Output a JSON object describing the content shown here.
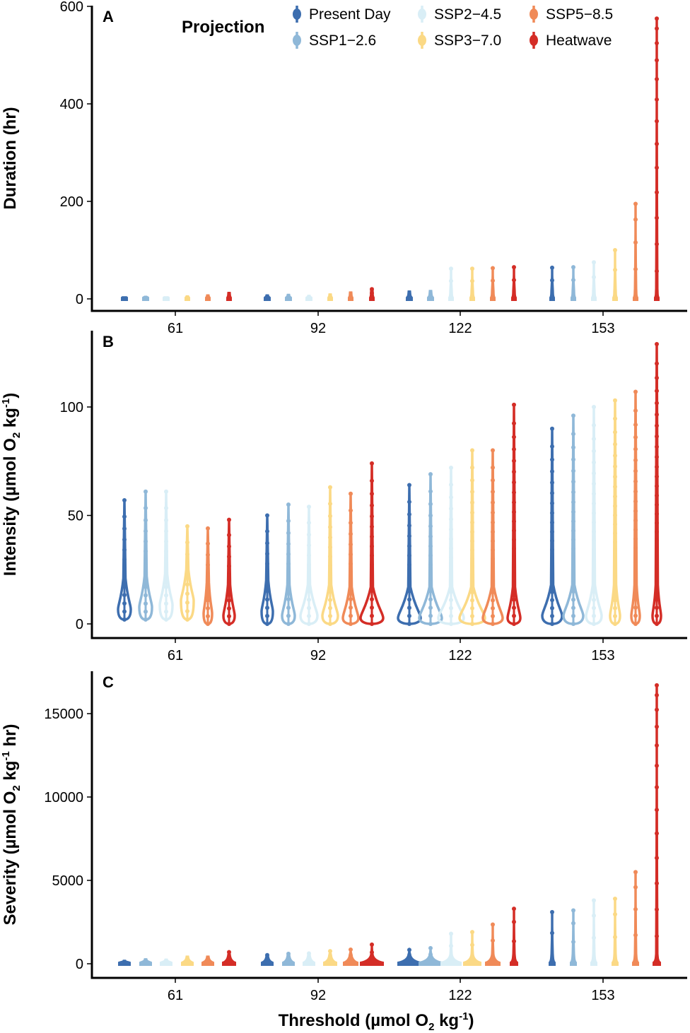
{
  "palette": {
    "Present Day": "#3d6eaf",
    "SSP1−2.6": "#8fb8d8",
    "SSP2−4.5": "#d9eef6",
    "SSP3−7.0": "#fbd985",
    "SSP5−8.5": "#f08a58",
    "Heatwave": "#d42d26"
  },
  "legend": {
    "title": "Projection",
    "items": [
      "Present Day",
      "SSP1−2.6",
      "SSP2−4.5",
      "SSP3−7.0",
      "SSP5−8.5",
      "Heatwave"
    ]
  },
  "xlabel": {
    "pre": "Threshold (µmol O",
    "sub": "2",
    "mid": " kg",
    "sup": "-1",
    "post": ")"
  },
  "chart_data": [
    {
      "type": "violin",
      "panel": "A",
      "ylabel": {
        "pre": "Duration (hr)"
      },
      "ylim": [
        0,
        600
      ],
      "yticks": [
        0,
        200,
        400,
        600
      ],
      "categories": [
        "61",
        "92",
        "122",
        "153"
      ],
      "series_names": [
        "Present Day",
        "SSP1−2.6",
        "SSP2−4.5",
        "SSP3−7.0",
        "SSP5−8.5",
        "Heatwave"
      ],
      "max": [
        [
          4,
          5,
          4,
          6,
          8,
          13
        ],
        [
          8,
          9,
          7,
          10,
          14,
          20
        ],
        [
          16,
          17,
          62,
          62,
          63,
          65
        ],
        [
          64,
          65,
          75,
          100,
          195,
          575
        ]
      ],
      "base_width": [
        [
          4,
          4,
          4,
          3,
          3,
          3
        ],
        [
          4,
          4,
          4,
          3,
          3,
          3
        ],
        [
          4,
          4,
          3,
          3,
          3,
          3
        ],
        [
          3,
          3,
          3,
          3,
          3,
          3
        ]
      ]
    },
    {
      "type": "violin",
      "panel": "B",
      "ylabel": {
        "pre": "Intensity (µmol O",
        "sub": "2",
        "mid": " kg",
        "sup": "-1",
        "post": ")"
      },
      "ylim": [
        0,
        130
      ],
      "yticks": [
        0,
        50,
        100
      ],
      "categories": [
        "61",
        "92",
        "122",
        "153"
      ],
      "series_names": [
        "Present Day",
        "SSP1−2.6",
        "SSP2−4.5",
        "SSP3−7.0",
        "SSP5−8.5",
        "Heatwave"
      ],
      "max": [
        [
          57,
          61,
          61,
          45,
          44,
          48
        ],
        [
          50,
          55,
          54,
          63,
          60,
          74
        ],
        [
          64,
          69,
          72,
          80,
          80,
          101
        ],
        [
          90,
          96,
          100,
          103,
          107,
          129
        ]
      ],
      "min": [
        [
          2,
          2,
          2,
          2,
          0,
          0
        ],
        [
          0,
          0,
          0,
          0,
          0,
          0
        ],
        [
          0,
          0,
          0,
          0,
          0,
          0
        ],
        [
          0,
          0,
          0,
          0,
          0,
          0
        ]
      ],
      "mode": [
        [
          8,
          9,
          10,
          12,
          6,
          5
        ],
        [
          7,
          5,
          5,
          5,
          4,
          4
        ],
        [
          4,
          4,
          4,
          4,
          4,
          4
        ],
        [
          5,
          5,
          5,
          5,
          5,
          5
        ]
      ],
      "bulge": [
        [
          9,
          9,
          9,
          9,
          6,
          8
        ],
        [
          8,
          9,
          12,
          11,
          11,
          16
        ],
        [
          16,
          16,
          18,
          18,
          14,
          9
        ],
        [
          14,
          14,
          11,
          7,
          6,
          6
        ]
      ]
    },
    {
      "type": "violin",
      "panel": "C",
      "ylabel": {
        "pre": "Severity (µmol O",
        "sub": "2",
        "mid": " kg",
        "sup": "-1",
        "post": " hr)"
      },
      "ylim": [
        -400,
        17500
      ],
      "yticks": [
        0,
        5000,
        10000,
        15000
      ],
      "categories": [
        "61",
        "92",
        "122",
        "153"
      ],
      "series_names": [
        "Present Day",
        "SSP1−2.6",
        "SSP2−4.5",
        "SSP3−7.0",
        "SSP5−8.5",
        "Heatwave"
      ],
      "max": [
        [
          200,
          290,
          270,
          450,
          450,
          700
        ],
        [
          520,
          600,
          620,
          760,
          850,
          1150
        ],
        [
          830,
          940,
          1800,
          1900,
          2350,
          3300
        ],
        [
          3100,
          3200,
          3800,
          3900,
          5500,
          16700
        ]
      ],
      "base_width": [
        [
          8,
          8,
          8,
          8,
          8,
          9
        ],
        [
          8,
          8,
          8,
          9,
          10,
          16
        ],
        [
          16,
          16,
          14,
          12,
          10,
          5
        ],
        [
          4,
          4,
          4,
          4,
          4,
          5
        ]
      ]
    }
  ]
}
